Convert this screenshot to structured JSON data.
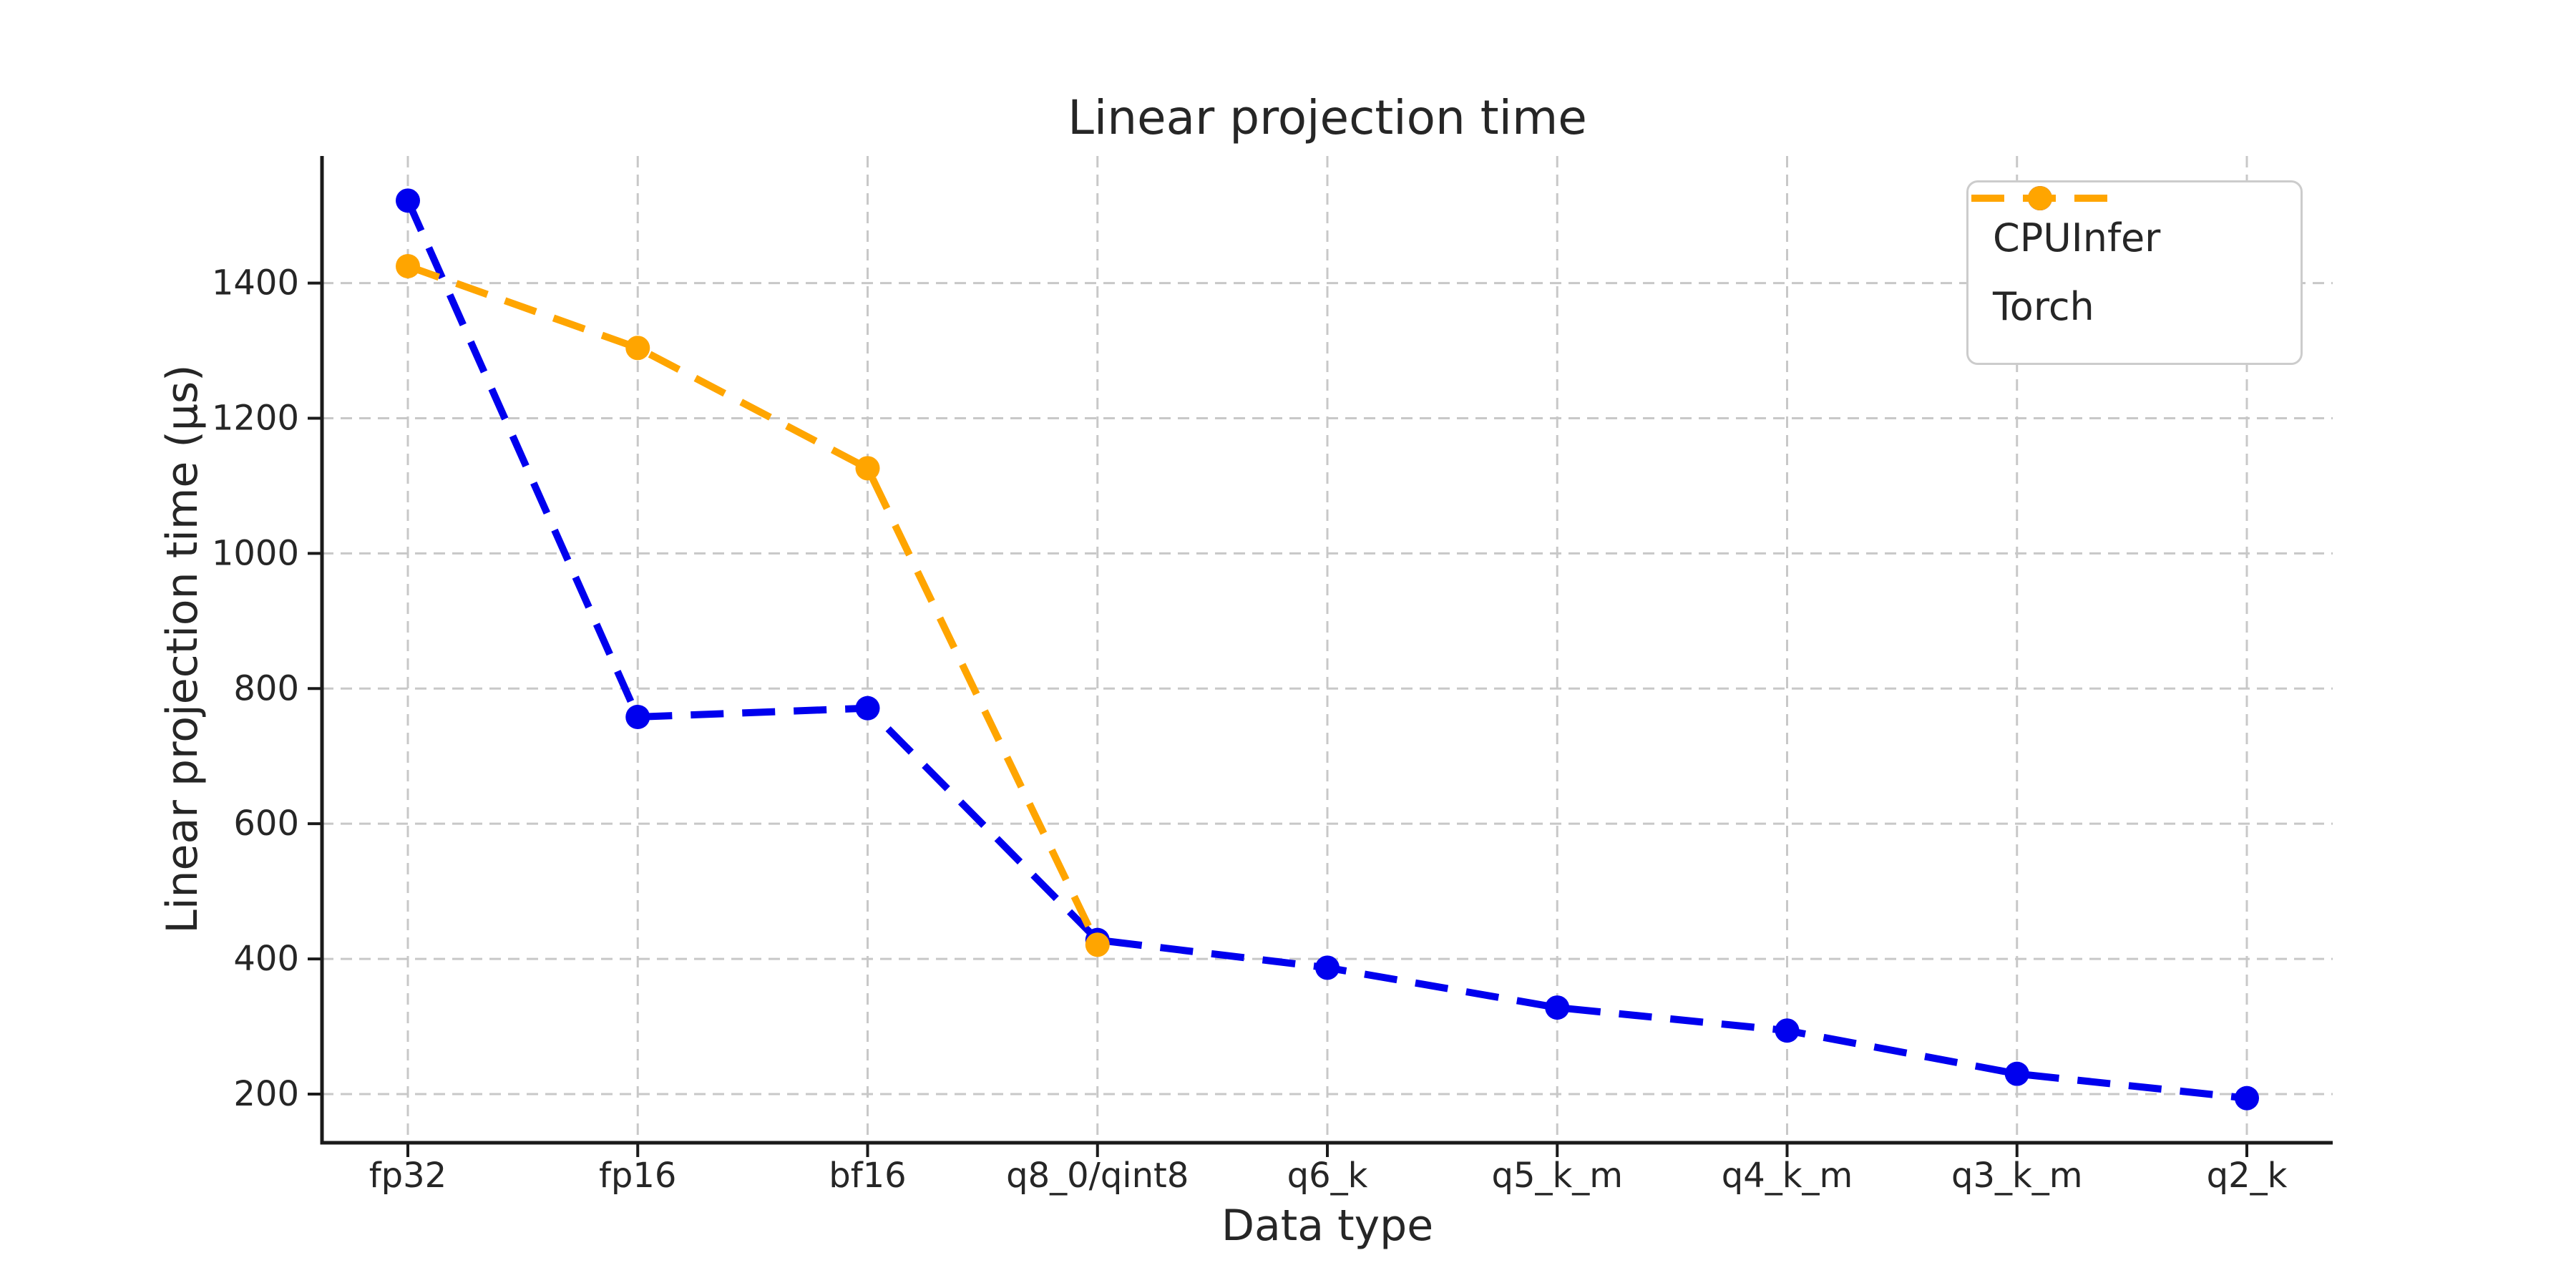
{
  "chart_data": {
    "type": "line",
    "title": "Linear projection time",
    "xlabel": "Data type",
    "ylabel": "Linear projection time (µs)",
    "categories": [
      "fp32",
      "fp16",
      "bf16",
      "q8_0/qint8",
      "q6_k",
      "q5_k_m",
      "q4_k_m",
      "q3_k_m",
      "q2_k"
    ],
    "series": [
      {
        "name": "CPUInfer",
        "color": "#0000ee",
        "values": [
          1522,
          758,
          771,
          428,
          387,
          328,
          294,
          230,
          194
        ]
      },
      {
        "name": "Torch",
        "color": "#ffa500",
        "values": [
          1425,
          1304,
          1126,
          421,
          null,
          null,
          null,
          null,
          null
        ]
      }
    ],
    "yticks": [
      200,
      400,
      600,
      800,
      1000,
      1200,
      1400
    ],
    "ylim": [
      128,
      1588
    ],
    "grid": true,
    "line_style": "dashed",
    "marker": "circle",
    "legend_position": "upper right"
  },
  "style": {
    "grid_color": "#c8c8c8",
    "axis_color": "#1a1a1a",
    "text_color": "#262626",
    "background": "#ffffff"
  }
}
